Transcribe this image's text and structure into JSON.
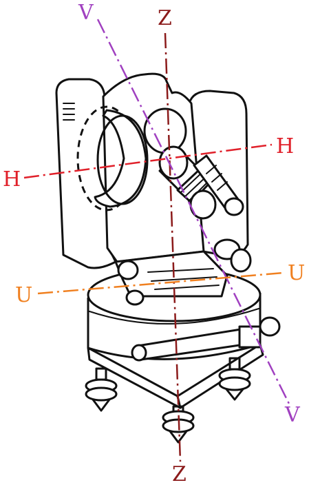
{
  "colors": {
    "ink": "#111111",
    "axis_z": "#8b1a1a",
    "axis_h": "#e0202a",
    "axis_v": "#a040c0",
    "axis_u": "#f08020"
  },
  "axes": {
    "z_top": "Z",
    "z_bottom": "Z",
    "v_top": "V",
    "v_bottom": "V",
    "h_left": "H",
    "h_right": "H",
    "u_left": "U",
    "u_right": "U"
  }
}
